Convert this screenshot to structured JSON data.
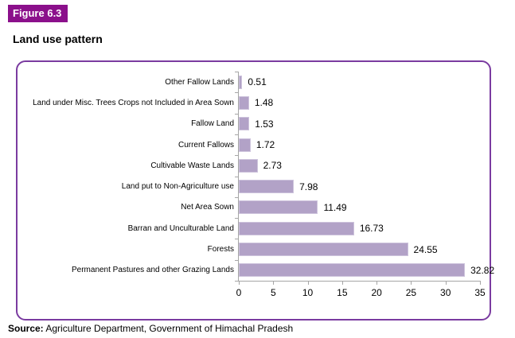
{
  "figure_label": "Figure 6.3",
  "title": "Land use pattern",
  "source": {
    "prefix": "Source:",
    "text": " Agriculture Department, Government of Himachal Pradesh"
  },
  "colors": {
    "badge_bg": "#8B108B",
    "panel_border": "#7A3BA0",
    "bar_fill": "#B2A2C7",
    "bar_border": "#CDC3DC",
    "axis": "#A6A6A6"
  },
  "chart_data": {
    "type": "bar",
    "orientation": "horizontal",
    "title": "Land use pattern",
    "xlabel": "",
    "ylabel": "",
    "categories": [
      "Other Fallow Lands",
      "Land under Misc. Trees Crops not Included in Area Sown",
      "Fallow Land",
      "Current Fallows",
      "Cultivable Waste Lands",
      "Land put to Non-Agriculture use",
      "Net Area Sown",
      "Barran and Unculturable Land",
      "Forests",
      "Permanent Pastures and other Grazing Lands"
    ],
    "values": [
      0.51,
      1.48,
      1.53,
      1.72,
      2.73,
      7.98,
      11.49,
      16.73,
      24.55,
      32.82
    ],
    "value_labels": [
      "0.51",
      "1.48",
      "1.53",
      "1.72",
      "2.73",
      "7.98",
      "11.49",
      "16.73",
      "24.55",
      "32.82"
    ],
    "xlim": [
      0,
      35
    ],
    "xticks": [
      0,
      5,
      10,
      15,
      20,
      25,
      30,
      35
    ],
    "grid": false,
    "legend": null
  }
}
